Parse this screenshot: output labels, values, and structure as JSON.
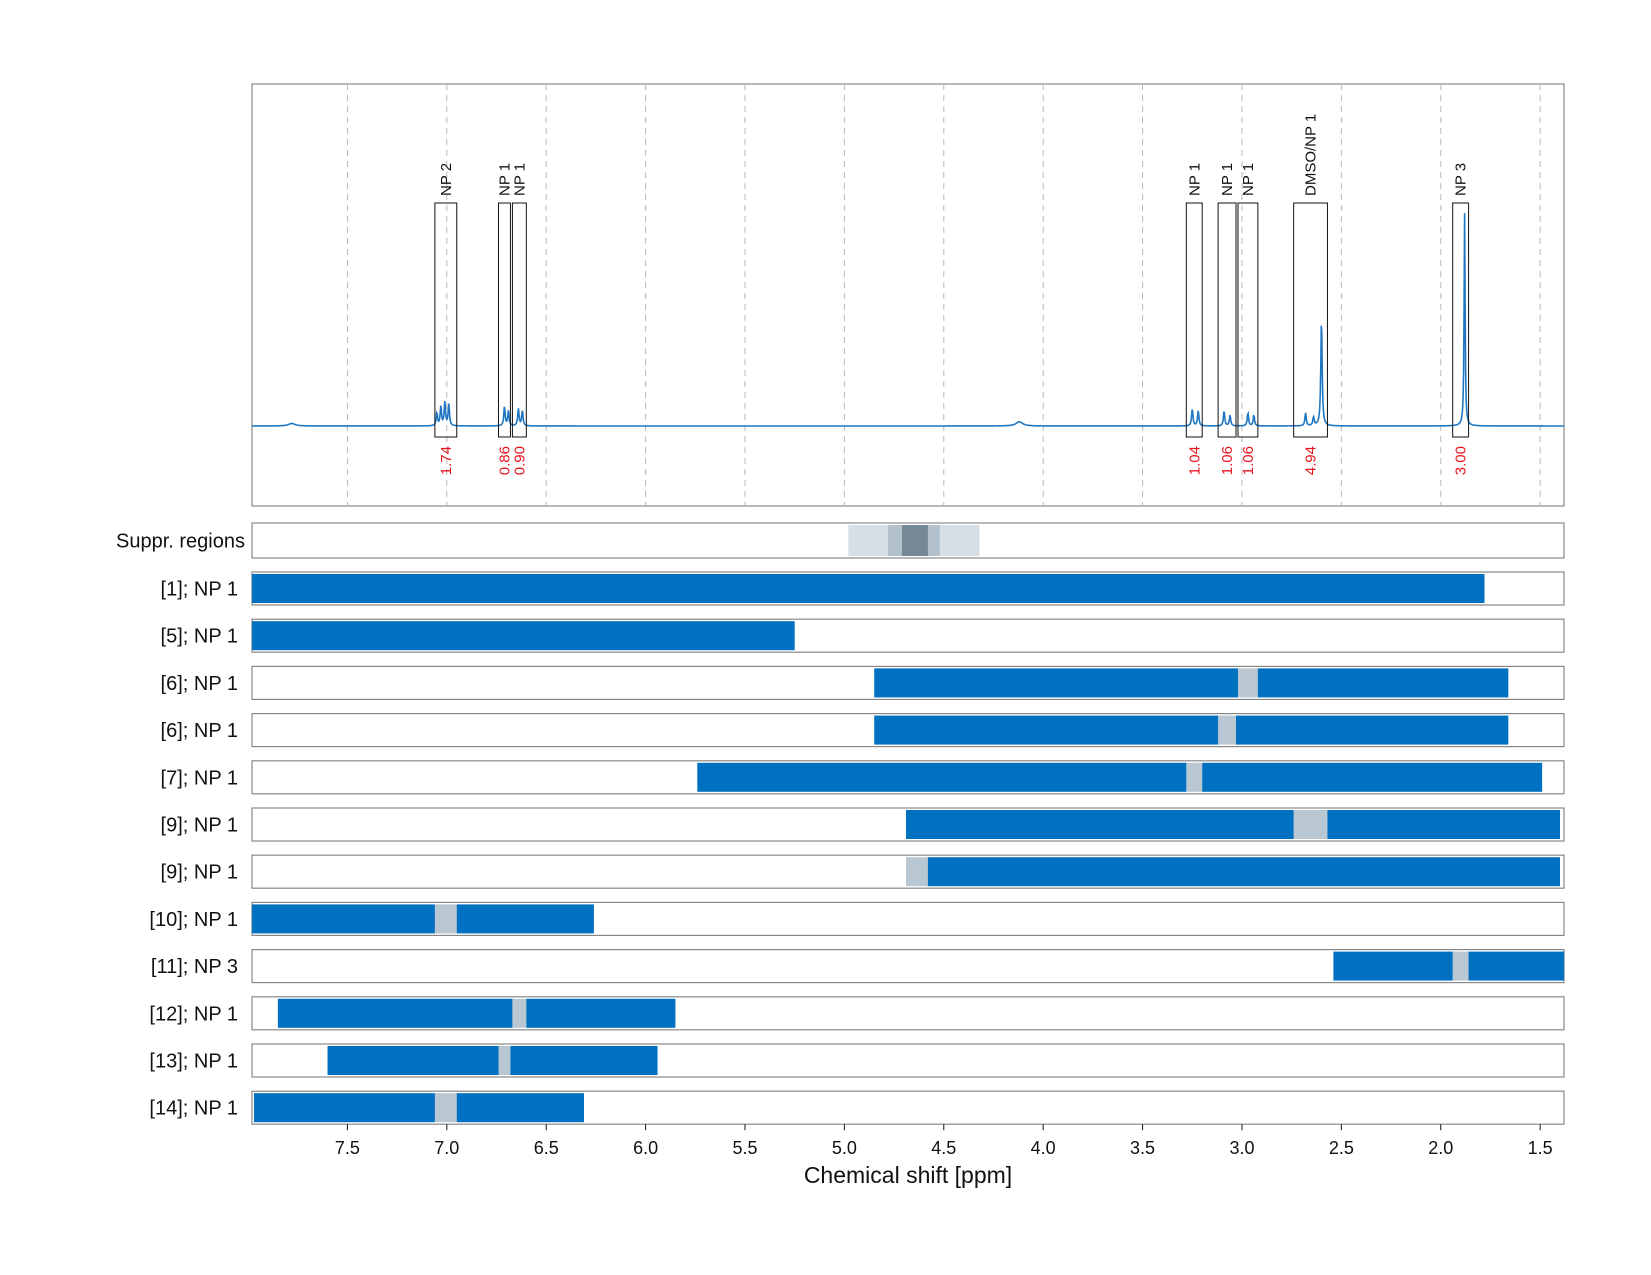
{
  "chart_data": {
    "type": "spectrum",
    "xlabel": "Chemical shift [ppm]",
    "xlim": [
      7.98,
      1.38
    ],
    "x_ticks": [
      "7.5",
      "7.0",
      "6.5",
      "6.0",
      "5.5",
      "5.0",
      "4.5",
      "4.0",
      "3.5",
      "3.0",
      "2.5",
      "2.0",
      "1.5"
    ],
    "x_tick_values": [
      7.5,
      7.0,
      6.5,
      6.0,
      5.5,
      5.0,
      4.5,
      4.0,
      3.5,
      3.0,
      2.5,
      2.0,
      1.5
    ],
    "grid": "vertical dashed",
    "colors": {
      "spectrum": "#1f77c4",
      "bar": "#0070c0",
      "gap": "#b8c7d1",
      "integral": "#e8141c",
      "suppr_light": "#d6dfe6",
      "suppr_mid": "#b3c1cc",
      "suppr_dark": "#748896"
    },
    "spectrum": {
      "baseline_peaks": [
        {
          "ppm": 7.78,
          "height": 0.012,
          "width": 0.02
        },
        {
          "ppm": 7.03,
          "height": 0.09,
          "width": 0.004
        },
        {
          "ppm": 7.01,
          "height": 0.11,
          "width": 0.004
        },
        {
          "ppm": 6.99,
          "height": 0.1,
          "width": 0.004
        },
        {
          "ppm": 7.05,
          "height": 0.06,
          "width": 0.004
        },
        {
          "ppm": 6.71,
          "height": 0.09,
          "width": 0.004
        },
        {
          "ppm": 6.69,
          "height": 0.07,
          "width": 0.004
        },
        {
          "ppm": 6.64,
          "height": 0.08,
          "width": 0.004
        },
        {
          "ppm": 6.62,
          "height": 0.07,
          "width": 0.004
        },
        {
          "ppm": 4.12,
          "height": 0.02,
          "width": 0.02
        },
        {
          "ppm": 3.25,
          "height": 0.08,
          "width": 0.004
        },
        {
          "ppm": 3.22,
          "height": 0.07,
          "width": 0.004
        },
        {
          "ppm": 3.09,
          "height": 0.07,
          "width": 0.004
        },
        {
          "ppm": 3.06,
          "height": 0.05,
          "width": 0.004
        },
        {
          "ppm": 2.97,
          "height": 0.06,
          "width": 0.004
        },
        {
          "ppm": 2.94,
          "height": 0.05,
          "width": 0.004
        },
        {
          "ppm": 2.68,
          "height": 0.06,
          "width": 0.004
        },
        {
          "ppm": 2.64,
          "height": 0.04,
          "width": 0.004
        },
        {
          "ppm": 2.6,
          "height": 0.5,
          "width": 0.004
        },
        {
          "ppm": 1.88,
          "height": 1.0,
          "width": 0.003
        }
      ]
    },
    "integration_regions": [
      {
        "label": "NP 2",
        "from": 7.06,
        "to": 6.95,
        "integral": "1.74"
      },
      {
        "label": "NP 1",
        "from": 6.74,
        "to": 6.68,
        "integral": "0.86"
      },
      {
        "label": "NP 1",
        "from": 6.67,
        "to": 6.6,
        "integral": "0.90"
      },
      {
        "label": "NP 1",
        "from": 3.28,
        "to": 3.2,
        "integral": "1.04"
      },
      {
        "label": "NP 1",
        "from": 3.12,
        "to": 3.03,
        "integral": "1.06"
      },
      {
        "label": "NP 1",
        "from": 3.02,
        "to": 2.92,
        "integral": "1.06"
      },
      {
        "label": "DMSO/NP 1",
        "from": 2.74,
        "to": 2.57,
        "integral": "4.94"
      },
      {
        "label": "NP 3",
        "from": 1.94,
        "to": 1.86,
        "integral": "3.00"
      }
    ],
    "suppr_label": "Suppr. regions",
    "suppr_regions": [
      {
        "from": 4.98,
        "to": 4.32,
        "level": "light"
      },
      {
        "from": 4.78,
        "to": 4.52,
        "level": "mid"
      },
      {
        "from": 4.71,
        "to": 4.58,
        "level": "dark"
      }
    ],
    "rows": [
      {
        "label": "[1]; NP 1",
        "spans": [
          [
            7.98,
            1.78
          ]
        ],
        "gaps": []
      },
      {
        "label": "[5]; NP 1",
        "spans": [
          [
            7.98,
            5.25
          ]
        ],
        "gaps": []
      },
      {
        "label": "[6]; NP 1",
        "spans": [
          [
            4.85,
            3.02
          ],
          [
            2.92,
            1.66
          ]
        ],
        "gaps": [
          [
            3.02,
            2.92
          ]
        ]
      },
      {
        "label": "[6]; NP 1",
        "spans": [
          [
            4.85,
            3.12
          ],
          [
            3.03,
            1.66
          ]
        ],
        "gaps": [
          [
            3.12,
            3.03
          ]
        ]
      },
      {
        "label": "[7]; NP 1",
        "spans": [
          [
            5.74,
            3.28
          ],
          [
            3.2,
            1.49
          ]
        ],
        "gaps": [
          [
            3.28,
            3.2
          ]
        ]
      },
      {
        "label": "[9]; NP 1",
        "spans": [
          [
            4.69,
            2.74
          ],
          [
            2.57,
            1.4
          ]
        ],
        "gaps": [
          [
            2.74,
            2.57
          ]
        ]
      },
      {
        "label": "[9]; NP 1",
        "spans": [
          [
            4.58,
            1.4
          ]
        ],
        "gaps": [
          [
            4.69,
            4.58
          ]
        ]
      },
      {
        "label": "[10]; NP 1",
        "spans": [
          [
            7.98,
            7.06
          ],
          [
            6.95,
            6.26
          ]
        ],
        "gaps": [
          [
            7.06,
            6.95
          ]
        ]
      },
      {
        "label": "[11]; NP 3",
        "spans": [
          [
            2.54,
            1.94
          ],
          [
            1.86,
            1.38
          ]
        ],
        "gaps": [
          [
            1.94,
            1.86
          ]
        ]
      },
      {
        "label": "[12]; NP 1",
        "spans": [
          [
            7.85,
            6.67
          ],
          [
            6.6,
            5.85
          ]
        ],
        "gaps": [
          [
            6.67,
            6.6
          ]
        ]
      },
      {
        "label": "[13]; NP 1",
        "spans": [
          [
            7.6,
            6.74
          ],
          [
            6.68,
            5.94
          ]
        ],
        "gaps": [
          [
            6.74,
            6.68
          ]
        ]
      },
      {
        "label": "[14]; NP 1",
        "spans": [
          [
            7.97,
            7.06
          ],
          [
            6.95,
            6.31
          ]
        ],
        "gaps": [
          [
            7.06,
            6.95
          ]
        ]
      }
    ]
  }
}
